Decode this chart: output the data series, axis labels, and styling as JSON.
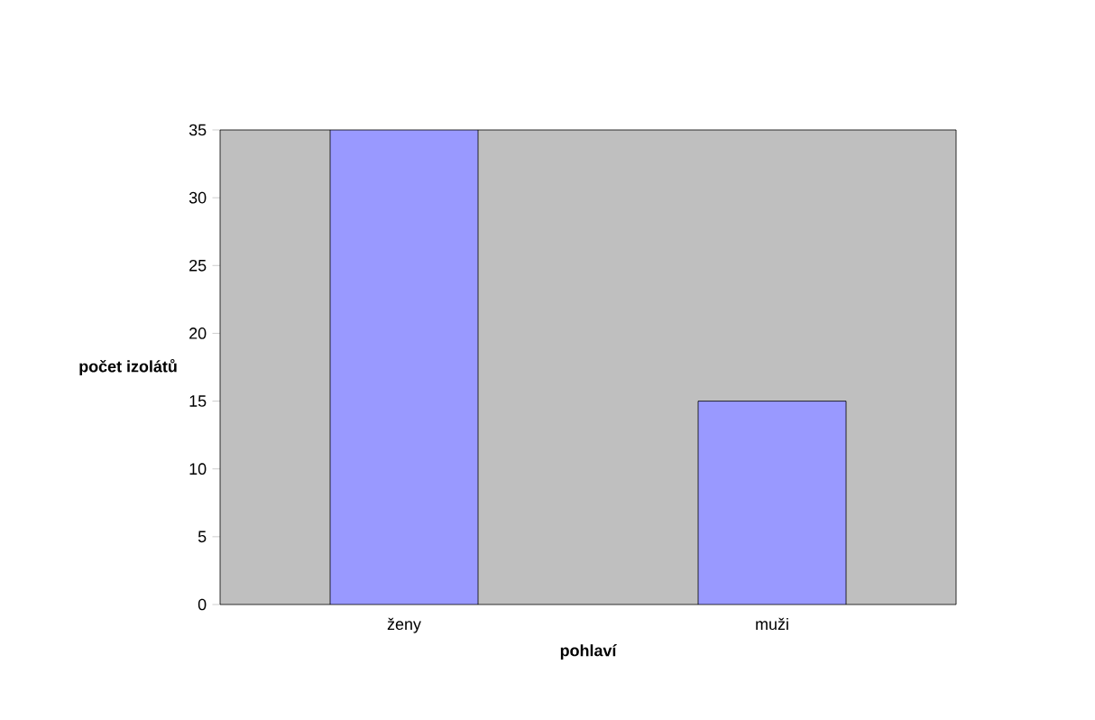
{
  "chart_data": {
    "type": "bar",
    "categories": [
      "ženy",
      "muži"
    ],
    "values": [
      35,
      15
    ],
    "color": "#9999ff",
    "xlabel": "pohlaví",
    "ylabel": "počet izolátů",
    "ylim": [
      0,
      35
    ],
    "yticks": [
      0,
      5,
      10,
      15,
      20,
      25,
      30,
      35
    ],
    "grid": false
  }
}
